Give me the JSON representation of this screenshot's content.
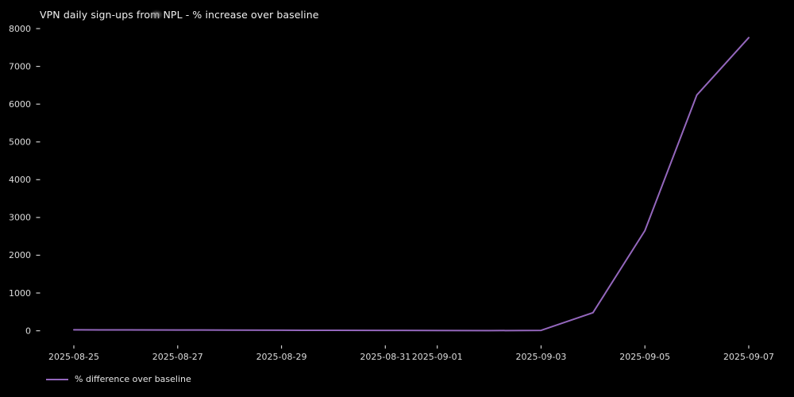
{
  "title": "VPN daily sign-ups from NPL - % increase over baseline",
  "legend": {
    "label": "% difference over baseline"
  },
  "colors": {
    "background": "#000000",
    "text": "#e6e6e6",
    "tick": "#cccccc",
    "line": "#9467bd"
  },
  "chart_data": {
    "type": "line",
    "title": "VPN daily sign-ups from NPL - % increase over baseline",
    "xlabel": "",
    "ylabel": "",
    "x": [
      "2025-08-25",
      "2025-08-26",
      "2025-08-27",
      "2025-08-28",
      "2025-08-29",
      "2025-08-30",
      "2025-08-31",
      "2025-09-01",
      "2025-09-02",
      "2025-09-03",
      "2025-09-04",
      "2025-09-05",
      "2025-09-06",
      "2025-09-07"
    ],
    "series": [
      {
        "name": "% difference over baseline",
        "color": "#9467bd",
        "values": [
          25,
          22,
          20,
          18,
          15,
          12,
          10,
          8,
          5,
          10,
          480,
          2650,
          6240,
          7760
        ]
      }
    ],
    "x_tick_labels": [
      "2025-08-25",
      "2025-08-27",
      "2025-08-29",
      "2025-08-31",
      "2025-09-01",
      "2025-09-03",
      "2025-09-05",
      "2025-09-07"
    ],
    "x_tick_indices": [
      0,
      2,
      4,
      6,
      7,
      9,
      11,
      13
    ],
    "y_ticks": [
      0,
      1000,
      2000,
      3000,
      4000,
      5000,
      6000,
      7000,
      8000
    ],
    "ylim": [
      -387,
      8137
    ],
    "grid": false,
    "legend_position": "lower left",
    "background": "#000000"
  }
}
